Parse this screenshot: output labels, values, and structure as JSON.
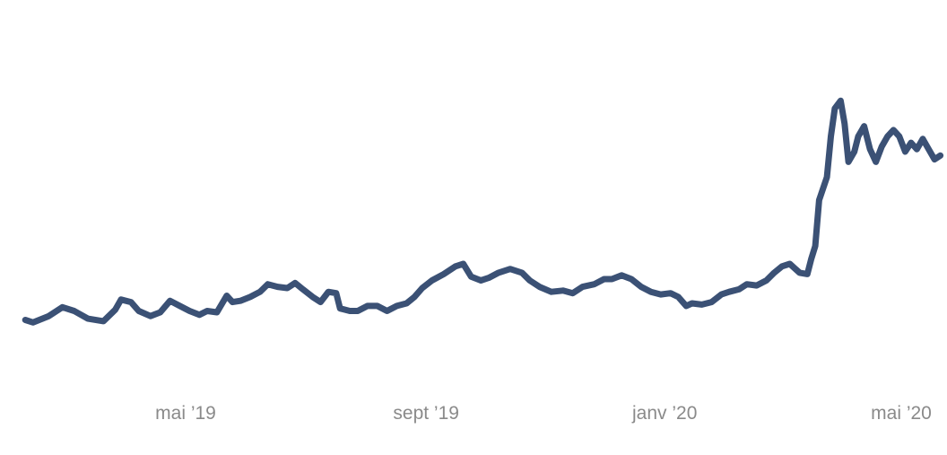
{
  "chart_data": {
    "type": "line",
    "title": "",
    "xlabel": "",
    "ylabel": "",
    "grid": false,
    "legend": "none",
    "x_ticks": [
      {
        "label": "mai ’19",
        "date": "2019-05-01"
      },
      {
        "label": "sept ’19",
        "date": "2019-09-01"
      },
      {
        "label": "janv ’20",
        "date": "2020-01-01"
      },
      {
        "label": "mai ’20",
        "date": "2020-05-01"
      }
    ],
    "series": [
      {
        "color": "#3b5175",
        "points": [
          [
            "2019-02-08",
            6
          ],
          [
            "2019-02-12",
            4
          ],
          [
            "2019-02-20",
            9
          ],
          [
            "2019-02-27",
            16
          ],
          [
            "2019-03-05",
            13
          ],
          [
            "2019-03-12",
            7
          ],
          [
            "2019-03-20",
            5
          ],
          [
            "2019-03-26",
            14
          ],
          [
            "2019-03-29",
            22
          ],
          [
            "2019-04-03",
            20
          ],
          [
            "2019-04-07",
            13
          ],
          [
            "2019-04-13",
            9
          ],
          [
            "2019-04-18",
            12
          ],
          [
            "2019-04-23",
            21
          ],
          [
            "2019-04-28",
            17
          ],
          [
            "2019-05-03",
            13
          ],
          [
            "2019-05-08",
            10
          ],
          [
            "2019-05-12",
            13
          ],
          [
            "2019-05-17",
            12
          ],
          [
            "2019-05-22",
            25
          ],
          [
            "2019-05-25",
            20
          ],
          [
            "2019-05-29",
            21
          ],
          [
            "2019-06-03",
            24
          ],
          [
            "2019-06-08",
            28
          ],
          [
            "2019-06-12",
            34
          ],
          [
            "2019-06-17",
            32
          ],
          [
            "2019-06-22",
            31
          ],
          [
            "2019-06-26",
            35
          ],
          [
            "2019-06-30",
            30
          ],
          [
            "2019-07-05",
            24
          ],
          [
            "2019-07-09",
            20
          ],
          [
            "2019-07-13",
            28
          ],
          [
            "2019-07-17",
            27
          ],
          [
            "2019-07-19",
            15
          ],
          [
            "2019-07-24",
            13
          ],
          [
            "2019-07-28",
            13
          ],
          [
            "2019-08-02",
            17
          ],
          [
            "2019-08-07",
            17
          ],
          [
            "2019-08-12",
            13
          ],
          [
            "2019-08-17",
            17
          ],
          [
            "2019-08-22",
            19
          ],
          [
            "2019-08-26",
            24
          ],
          [
            "2019-08-30",
            31
          ],
          [
            "2019-09-04",
            37
          ],
          [
            "2019-09-10",
            42
          ],
          [
            "2019-09-16",
            48
          ],
          [
            "2019-09-20",
            50
          ],
          [
            "2019-09-24",
            40
          ],
          [
            "2019-09-29",
            37
          ],
          [
            "2019-10-03",
            39
          ],
          [
            "2019-10-08",
            43
          ],
          [
            "2019-10-14",
            46
          ],
          [
            "2019-10-20",
            43
          ],
          [
            "2019-10-24",
            37
          ],
          [
            "2019-10-29",
            32
          ],
          [
            "2019-11-04",
            28
          ],
          [
            "2019-11-10",
            29
          ],
          [
            "2019-11-15",
            27
          ],
          [
            "2019-11-20",
            32
          ],
          [
            "2019-11-26",
            34
          ],
          [
            "2019-12-01",
            38
          ],
          [
            "2019-12-05",
            38
          ],
          [
            "2019-12-10",
            41
          ],
          [
            "2019-12-15",
            38
          ],
          [
            "2019-12-20",
            32
          ],
          [
            "2019-12-25",
            28
          ],
          [
            "2019-12-30",
            26
          ],
          [
            "2020-01-04",
            27
          ],
          [
            "2020-01-08",
            24
          ],
          [
            "2020-01-12",
            17
          ],
          [
            "2020-01-15",
            19
          ],
          [
            "2020-01-20",
            18
          ],
          [
            "2020-01-25",
            20
          ],
          [
            "2020-01-30",
            26
          ],
          [
            "2020-02-03",
            28
          ],
          [
            "2020-02-08",
            30
          ],
          [
            "2020-02-12",
            34
          ],
          [
            "2020-02-17",
            33
          ],
          [
            "2020-02-22",
            37
          ],
          [
            "2020-02-26",
            43
          ],
          [
            "2020-03-01",
            48
          ],
          [
            "2020-03-05",
            50
          ],
          [
            "2020-03-10",
            43
          ],
          [
            "2020-03-14",
            42
          ],
          [
            "2020-03-16",
            54
          ],
          [
            "2020-03-18",
            64
          ],
          [
            "2020-03-20",
            100
          ],
          [
            "2020-03-24",
            118
          ],
          [
            "2020-03-26",
            150
          ],
          [
            "2020-03-28",
            172
          ],
          [
            "2020-03-31",
            178
          ],
          [
            "2020-04-02",
            160
          ],
          [
            "2020-04-04",
            130
          ],
          [
            "2020-04-07",
            138
          ],
          [
            "2020-04-09",
            150
          ],
          [
            "2020-04-12",
            158
          ],
          [
            "2020-04-15",
            140
          ],
          [
            "2020-04-18",
            130
          ],
          [
            "2020-04-21",
            142
          ],
          [
            "2020-04-24",
            150
          ],
          [
            "2020-04-27",
            155
          ],
          [
            "2020-04-30",
            150
          ],
          [
            "2020-05-03",
            138
          ],
          [
            "2020-05-06",
            145
          ],
          [
            "2020-05-09",
            140
          ],
          [
            "2020-05-12",
            148
          ],
          [
            "2020-05-15",
            140
          ],
          [
            "2020-05-18",
            132
          ],
          [
            "2020-05-21",
            135
          ]
        ]
      }
    ]
  }
}
